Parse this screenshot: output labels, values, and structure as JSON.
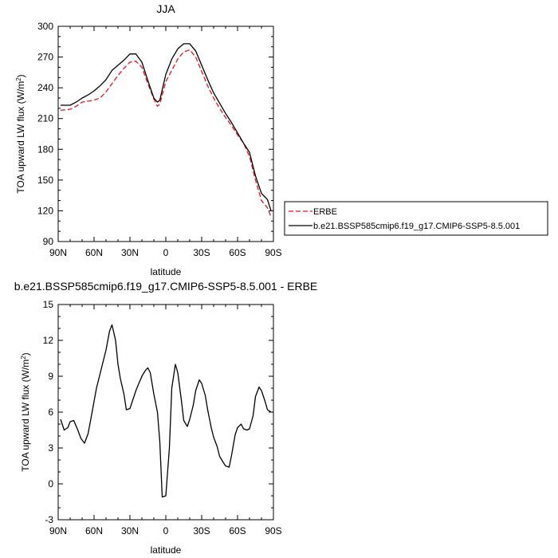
{
  "chart_data": [
    {
      "type": "line",
      "title": "JJA",
      "xlabel": "latitude",
      "ylabel": "TOA upward LW flux (W/m",
      "ylabel_sup": "2",
      "ylabel_end": ")",
      "xlim": [
        90,
        -90
      ],
      "ylim": [
        90,
        300
      ],
      "xticks": [
        90,
        60,
        30,
        0,
        -30,
        -60,
        -90
      ],
      "xtick_labels": [
        "90N",
        "60N",
        "30N",
        "0",
        "30S",
        "60S",
        "90S"
      ],
      "yticks": [
        90,
        120,
        150,
        180,
        210,
        240,
        270,
        300
      ],
      "ytick_labels": [
        "90",
        "120",
        "150",
        "180",
        "210",
        "240",
        "270",
        "300"
      ],
      "legend_position": "right",
      "series": [
        {
          "name": "ERBE",
          "color": "#e8141e",
          "dash": "dashed",
          "x": [
            88,
            80,
            75,
            70,
            65,
            60,
            55,
            50,
            45,
            40,
            35,
            30,
            25,
            20,
            15,
            10,
            7,
            5,
            3,
            0,
            -5,
            -10,
            -15,
            -20,
            -25,
            -30,
            -35,
            -40,
            -45,
            -50,
            -55,
            -60,
            -65,
            -70,
            -75,
            -80,
            -85,
            -88
          ],
          "y": [
            218,
            219,
            222,
            226,
            227,
            228,
            230,
            236,
            244,
            252,
            259,
            265,
            266,
            260,
            244,
            229,
            222,
            224,
            233,
            246,
            257,
            268,
            275,
            277,
            270,
            256,
            242,
            230,
            220,
            211,
            203,
            194,
            186,
            173,
            150,
            130,
            123,
            114
          ]
        },
        {
          "name": "b.e21.BSSP585cmip6.f19_g17.CMIP6-SSP5-8.5.001",
          "color": "#000000",
          "dash": "solid",
          "x": [
            88,
            80,
            75,
            70,
            65,
            60,
            55,
            50,
            45,
            40,
            35,
            30,
            25,
            20,
            15,
            10,
            7,
            5,
            3,
            0,
            -5,
            -10,
            -15,
            -20,
            -25,
            -30,
            -35,
            -40,
            -45,
            -50,
            -55,
            -60,
            -65,
            -70,
            -75,
            -80,
            -85,
            -88
          ],
          "y": [
            223,
            223,
            226,
            230,
            233,
            237,
            242,
            248,
            257,
            262,
            267,
            273,
            273,
            265,
            247,
            230,
            226,
            228,
            238,
            253,
            268,
            278,
            283,
            283,
            276,
            262,
            248,
            235,
            225,
            215,
            206,
            196,
            186,
            177,
            154,
            137,
            131,
            120
          ]
        }
      ]
    },
    {
      "type": "line",
      "title": "b.e21.BSSP585cmip6.f19_g17.CMIP6-SSP5-8.5.001 - ERBE",
      "xlabel": "latitude",
      "ylabel": "TOA upward LW flux (W/m",
      "ylabel_sup": "2",
      "ylabel_end": ")",
      "xlim": [
        90,
        -90
      ],
      "ylim": [
        -3,
        15
      ],
      "xticks": [
        90,
        60,
        30,
        0,
        -30,
        -60,
        -90
      ],
      "xtick_labels": [
        "90N",
        "60N",
        "30N",
        "0",
        "30S",
        "60S",
        "90S"
      ],
      "yticks": [
        -3,
        0,
        3,
        6,
        9,
        12,
        15
      ],
      "ytick_labels": [
        "-3",
        "0",
        "3",
        "6",
        "9",
        "12",
        "15"
      ],
      "series": [
        {
          "color": "#000000",
          "dash": "solid",
          "x": [
            88,
            85,
            82,
            80,
            77,
            74,
            71,
            68,
            65,
            62,
            58,
            55,
            50,
            47,
            45,
            42,
            40,
            38,
            35,
            33,
            30,
            25,
            23,
            20,
            17,
            15,
            13,
            10,
            7,
            5,
            3,
            0,
            -3,
            -5,
            -8,
            -10,
            -13,
            -15,
            -18,
            -20,
            -23,
            -25,
            -28,
            -30,
            -33,
            -35,
            -38,
            -40,
            -43,
            -45,
            -48,
            -50,
            -53,
            -55,
            -58,
            -60,
            -63,
            -65,
            -68,
            -70,
            -73,
            -75,
            -78,
            -80,
            -83,
            -85,
            -88
          ],
          "y": [
            5.4,
            4.5,
            4.7,
            5.2,
            5.3,
            4.6,
            3.8,
            3.4,
            4.2,
            5.8,
            8.0,
            9.2,
            11.2,
            12.8,
            13.3,
            12.0,
            10.0,
            8.8,
            7.5,
            6.2,
            6.3,
            7.8,
            8.3,
            9.0,
            9.5,
            9.7,
            9.3,
            7.5,
            6.0,
            3.5,
            -1.1,
            -1.0,
            3.0,
            8.0,
            10.0,
            9.3,
            7.0,
            5.3,
            4.8,
            5.4,
            6.6,
            7.8,
            8.7,
            8.4,
            7.4,
            6.2,
            4.7,
            3.9,
            3.1,
            2.3,
            1.8,
            1.5,
            1.4,
            2.4,
            4.1,
            4.7,
            5.0,
            4.6,
            4.5,
            4.6,
            5.7,
            7.3,
            8.1,
            7.8,
            6.9,
            6.2,
            6.0
          ]
        }
      ]
    }
  ]
}
